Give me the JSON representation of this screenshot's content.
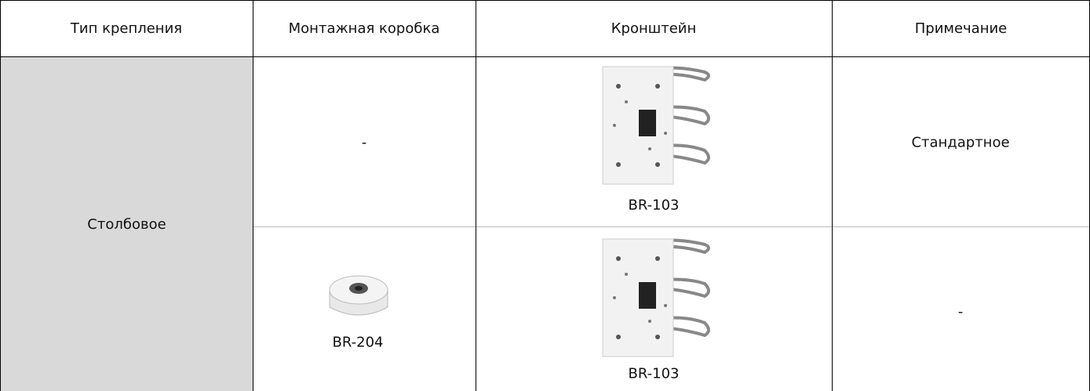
{
  "table": {
    "header": [
      "Тип крепления",
      "Монтажная коробка",
      "Кронштейн",
      "Примечание"
    ],
    "mount_type": "Столбовое",
    "rows": [
      {
        "box": "-",
        "bracket": "BR-103",
        "note": "Стандартное"
      },
      {
        "box": "BR-204",
        "bracket": "BR-103",
        "note": "-"
      }
    ]
  }
}
